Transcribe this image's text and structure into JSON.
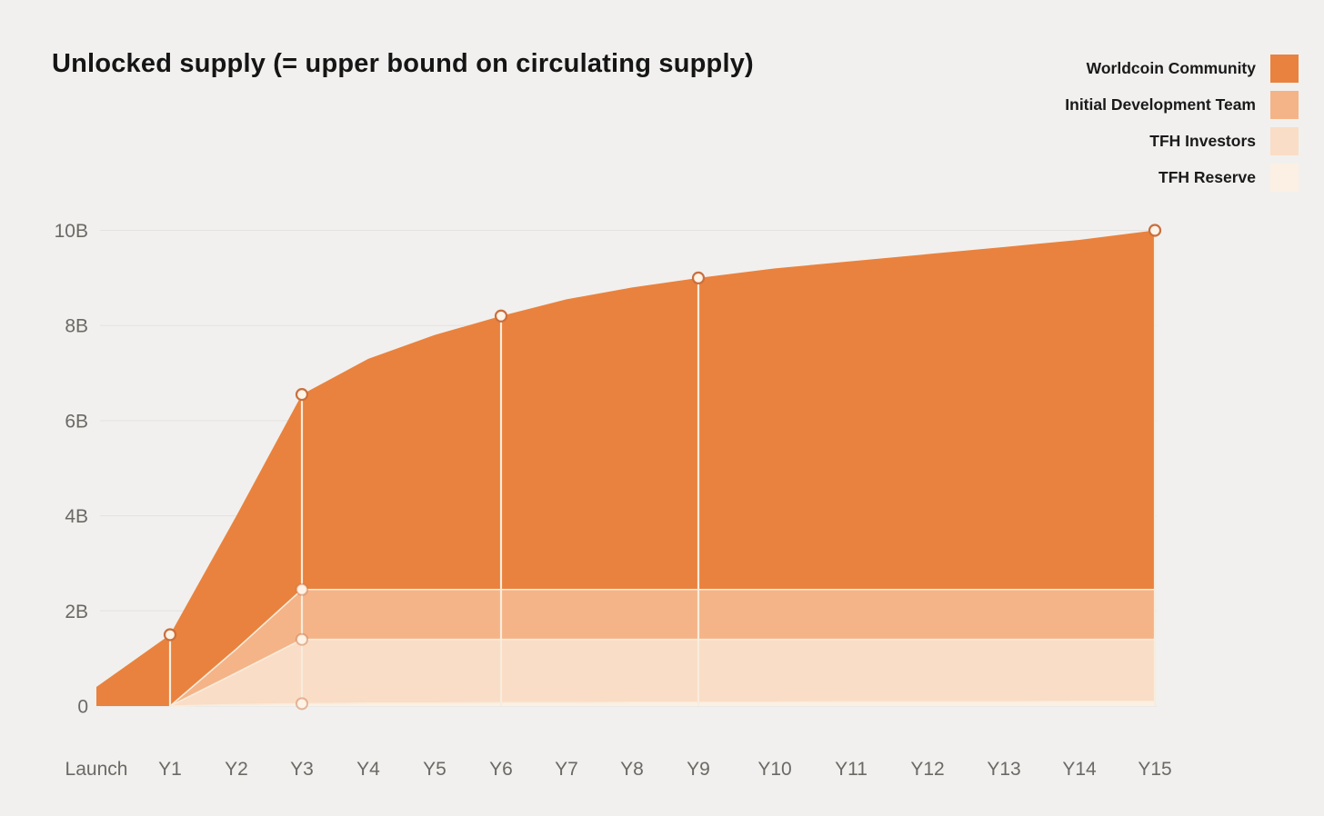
{
  "title": "Unlocked supply (= upper bound on circulating supply)",
  "chart_data": {
    "type": "area",
    "stacked": true,
    "title": "Unlocked supply (= upper bound on circulating supply)",
    "unit": "B",
    "x_labels": [
      "Launch",
      "Y1",
      "Y2",
      "Y3",
      "Y4",
      "Y5",
      "Y6",
      "Y7",
      "Y8",
      "Y9",
      "Y10",
      "Y11",
      "Y12",
      "Y13",
      "Y14",
      "Y15"
    ],
    "y_tick_labels": [
      "0",
      "2B",
      "4B",
      "6B",
      "8B",
      "10B"
    ],
    "y_tick_values": [
      0,
      2,
      4,
      6,
      8,
      10
    ],
    "ylim": [
      0,
      10
    ],
    "grid": "horizontal",
    "legend_position": "top-right",
    "series": [
      {
        "name": "Worldcoin Community",
        "color": "#E9823E",
        "cumulative_values": [
          0.4,
          1.5,
          4.0,
          6.55,
          7.3,
          7.8,
          8.2,
          8.55,
          8.8,
          9.0,
          9.2,
          9.35,
          9.5,
          9.65,
          9.8,
          10.0
        ]
      },
      {
        "name": "Initial Development Team",
        "color": "#F4B488",
        "cumulative_values": [
          0,
          0,
          1.2,
          2.45,
          2.45,
          2.45,
          2.45,
          2.45,
          2.45,
          2.45,
          2.45,
          2.45,
          2.45,
          2.45,
          2.45,
          2.45
        ]
      },
      {
        "name": "TFH Investors",
        "color": "#FADDC6",
        "cumulative_values": [
          0,
          0,
          0.7,
          1.4,
          1.4,
          1.4,
          1.4,
          1.4,
          1.4,
          1.4,
          1.4,
          1.4,
          1.4,
          1.4,
          1.4,
          1.4
        ]
      },
      {
        "name": "TFH Reserve",
        "color": "#FCF0E4",
        "cumulative_values": [
          0,
          0,
          0.03,
          0.05,
          0.06,
          0.06,
          0.07,
          0.07,
          0.08,
          0.08,
          0.08,
          0.09,
          0.09,
          0.09,
          0.1,
          0.1
        ]
      }
    ],
    "markers": {
      "total_marker_years": [
        "Y1",
        "Y3",
        "Y6",
        "Y9",
        "Y15"
      ],
      "band_marker_years": [
        "Y3"
      ],
      "vertical_guide_years": [
        "Y1",
        "Y3",
        "Y6",
        "Y9",
        "Y15"
      ],
      "marker_fill": "#FDF3E7",
      "marker_ring": "#C96F3D",
      "guide_color": "#F8ECDC"
    }
  }
}
